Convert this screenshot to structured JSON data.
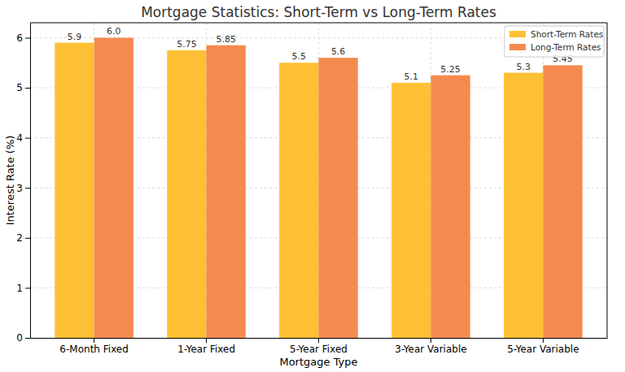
{
  "chart_data": {
    "type": "bar",
    "title": "Mortgage Statistics: Short-Term vs Long-Term Rates",
    "x_label": "Mortgage Type",
    "y_label": "Interest Rate (%)",
    "categories": [
      "6-Month Fixed",
      "1-Year Fixed",
      "5-Year Fixed",
      "3-Year Variable",
      "5-Year Variable"
    ],
    "series": [
      {
        "name": "Short-Term Rates",
        "color": "#fdbf33",
        "values": [
          5.9,
          5.75,
          5.5,
          5.1,
          5.3
        ],
        "value_labels": [
          "5.9",
          "5.75",
          "5.5",
          "5.1",
          "5.3"
        ]
      },
      {
        "name": "Long-Term Rates",
        "color": "#f58a50",
        "values": [
          6.0,
          5.85,
          5.6,
          5.25,
          5.45
        ],
        "value_labels": [
          "6.0",
          "5.85",
          "5.6",
          "5.25",
          "5.45"
        ]
      }
    ],
    "ylim": [
      0,
      6.3
    ],
    "yticks": [
      0,
      1,
      2,
      3,
      4,
      5,
      6
    ],
    "grid": true,
    "legend": "upper right",
    "data_labels": true
  }
}
